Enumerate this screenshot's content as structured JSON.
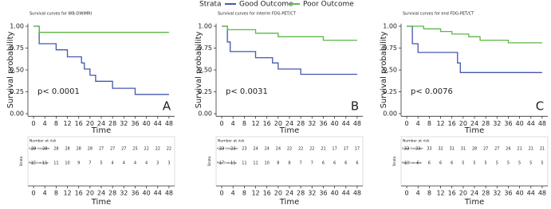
{
  "legend": {
    "title": "Strata",
    "items": [
      {
        "name": "Good Outcome",
        "color": "#4357ad"
      },
      {
        "name": "Poor Outcome",
        "color": "#5db646"
      }
    ]
  },
  "chart_data": [
    {
      "type": "step",
      "title": "Survival curves for WB-DWIMRI",
      "xlabel": "Time",
      "ylabel": "Survival probability",
      "xlim": [
        -2,
        50
      ],
      "ylim": [
        -0.03,
        1.03
      ],
      "xticks": [
        0,
        4,
        8,
        12,
        16,
        20,
        24,
        28,
        32,
        36,
        40,
        44,
        48
      ],
      "yticks": [
        {
          "value": 0,
          "label": "0.00"
        },
        {
          "value": 0.25,
          "label": "0.25"
        },
        {
          "value": 0.5,
          "label": "0.50"
        },
        {
          "value": 0.75,
          "label": "0.75"
        },
        {
          "value": 1,
          "label": "1.00"
        }
      ],
      "annotations": [
        "p< 0.0001",
        "A"
      ],
      "series": [
        {
          "color": "#4357ad",
          "x": [
            0,
            2,
            8,
            12,
            17,
            18,
            20,
            22,
            28,
            36,
            48
          ],
          "values": [
            1,
            0.8,
            0.73,
            0.65,
            0.58,
            0.51,
            0.44,
            0.37,
            0.29,
            0.22,
            0.22
          ]
        },
        {
          "color": "#5db646",
          "x": [
            0,
            2,
            48
          ],
          "values": [
            1,
            0.93,
            0.93
          ]
        }
      ],
      "risk_table": {
        "title": "Number at risk",
        "strata_label": "Strata",
        "xlabel": "Time",
        "rows": [
          {
            "name": "Good Outcome",
            "color": "#5db646",
            "values": [
              29,
              28,
              28,
              28,
              28,
              28,
              27,
              27,
              27,
              25,
              22,
              22,
              22
            ]
          },
          {
            "name": "Poor Outcome",
            "color": "#4357ad",
            "values": [
              15,
              11,
              11,
              10,
              9,
              7,
              5,
              4,
              4,
              4,
              4,
              3,
              3
            ]
          }
        ]
      }
    },
    {
      "type": "step",
      "title": "Survival curves for interim FDG-PET/CT",
      "xlabel": "Time",
      "ylabel": "Survival probability",
      "xlim": [
        -2,
        50
      ],
      "ylim": [
        -0.03,
        1.03
      ],
      "xticks": [
        0,
        4,
        8,
        12,
        16,
        20,
        24,
        28,
        32,
        36,
        40,
        44,
        48
      ],
      "yticks": [
        {
          "value": 0,
          "label": "0.00"
        },
        {
          "value": 0.25,
          "label": "0.25"
        },
        {
          "value": 0.5,
          "label": "0.50"
        },
        {
          "value": 0.75,
          "label": "0.75"
        },
        {
          "value": 1,
          "label": "1.00"
        }
      ],
      "annotations": [
        "p< 0.0031",
        "B"
      ],
      "series": [
        {
          "color": "#4357ad",
          "x": [
            0,
            2,
            3,
            12,
            18,
            20,
            28,
            48
          ],
          "values": [
            1,
            0.82,
            0.71,
            0.64,
            0.58,
            0.51,
            0.45,
            0.45
          ]
        },
        {
          "color": "#5db646",
          "x": [
            0,
            2,
            12,
            20,
            36,
            48
          ],
          "values": [
            1,
            0.96,
            0.92,
            0.88,
            0.84,
            0.84
          ]
        }
      ],
      "risk_table": {
        "title": "Number at risk",
        "strata_label": "Strata",
        "xlabel": "Time",
        "rows": [
          {
            "name": "Good Outcome",
            "color": "#5db646",
            "values": [
              23,
              23,
              23,
              24,
              24,
              24,
              22,
              22,
              22,
              21,
              17,
              17,
              17
            ]
          },
          {
            "name": "Poor Outcome",
            "color": "#4357ad",
            "values": [
              17,
              11,
              11,
              11,
              10,
              8,
              8,
              7,
              7,
              6,
              6,
              6,
              6
            ]
          }
        ]
      }
    },
    {
      "type": "step",
      "title": "Survival curves for end FDG-PET/CT",
      "xlabel": "Time",
      "ylabel": "Survival probability",
      "xlim": [
        -2,
        50
      ],
      "ylim": [
        -0.03,
        1.03
      ],
      "xticks": [
        0,
        4,
        8,
        12,
        16,
        20,
        24,
        28,
        32,
        36,
        40,
        44,
        48
      ],
      "yticks": [
        {
          "value": 0,
          "label": "0.00"
        },
        {
          "value": 0.25,
          "label": "0.25"
        },
        {
          "value": 0.5,
          "label": "0.50"
        },
        {
          "value": 0.75,
          "label": "0.75"
        },
        {
          "value": 1,
          "label": "1.00"
        }
      ],
      "annotations": [
        "p< 0.0076",
        "C"
      ],
      "series": [
        {
          "color": "#4357ad",
          "x": [
            0,
            2,
            4,
            18,
            19,
            48
          ],
          "values": [
            1,
            0.8,
            0.7,
            0.58,
            0.47,
            0.47
          ]
        },
        {
          "color": "#5db646",
          "x": [
            0,
            6,
            12,
            16,
            22,
            26,
            36,
            48
          ],
          "values": [
            1,
            0.97,
            0.94,
            0.91,
            0.88,
            0.84,
            0.81,
            0.81
          ]
        }
      ],
      "risk_table": {
        "title": "Number at risk",
        "strata_label": "Strata",
        "xlabel": "Time",
        "rows": [
          {
            "name": "Good Outcome",
            "color": "#5db646",
            "values": [
              33,
              33,
              33,
              32,
              31,
              31,
              28,
              27,
              27,
              26,
              21,
              21,
              21
            ]
          },
          {
            "name": "Poor Outcome",
            "color": "#4357ad",
            "values": [
              10,
              6,
              6,
              6,
              6,
              5,
              5,
              5,
              5,
              5,
              5,
              5,
              5
            ]
          }
        ]
      }
    }
  ]
}
